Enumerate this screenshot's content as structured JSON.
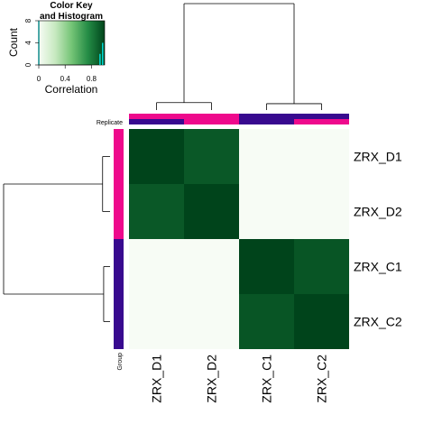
{
  "chart_data": {
    "type": "heatmap",
    "color_key": {
      "title_line1": "Color Key",
      "title_line2": "and Histogram",
      "xlabel": "Correlation",
      "ylabel": "Count",
      "x_ticks": [
        "0",
        "0.4",
        "0.8"
      ],
      "y_ticks": [
        "0",
        "4",
        "8"
      ],
      "xlim": [
        0,
        1
      ],
      "ylim": [
        0,
        8
      ],
      "colors": [
        "#f7fcf5",
        "#c7e9c0",
        "#74c476",
        "#238b45",
        "#00441b"
      ],
      "histogram_color": "#00e5e5",
      "histogram": [
        {
          "x": 0.0,
          "count": 8
        },
        {
          "x": 0.93,
          "count": 2
        },
        {
          "x": 0.97,
          "count": 4
        }
      ]
    },
    "row_labels": [
      "ZRX_D1",
      "ZRX_D2",
      "ZRX_C1",
      "ZRX_C2"
    ],
    "col_labels": [
      "ZRX_D1",
      "ZRX_D2",
      "ZRX_C1",
      "ZRX_C2"
    ],
    "values": [
      [
        1.0,
        0.93,
        0.0,
        0.0
      ],
      [
        0.93,
        1.0,
        0.0,
        0.0
      ],
      [
        0.0,
        0.0,
        1.0,
        0.94
      ],
      [
        0.0,
        0.0,
        0.94,
        1.0
      ]
    ],
    "col_annotation": {
      "label": "Replicate",
      "top": [
        "#ee0a8c",
        "#ee0a8c",
        "#380a8f",
        "#380a8f"
      ],
      "bottom": [
        "#380a8f",
        "#ee0a8c",
        "#380a8f",
        "#ee0a8c"
      ]
    },
    "row_annotation": {
      "label": "Group",
      "colors": [
        "#ee0a8c",
        "#ee0a8c",
        "#380a8f",
        "#380a8f"
      ]
    },
    "dendrogram": {
      "merge_heights": [
        0.07,
        0.06,
        1.0
      ]
    }
  }
}
